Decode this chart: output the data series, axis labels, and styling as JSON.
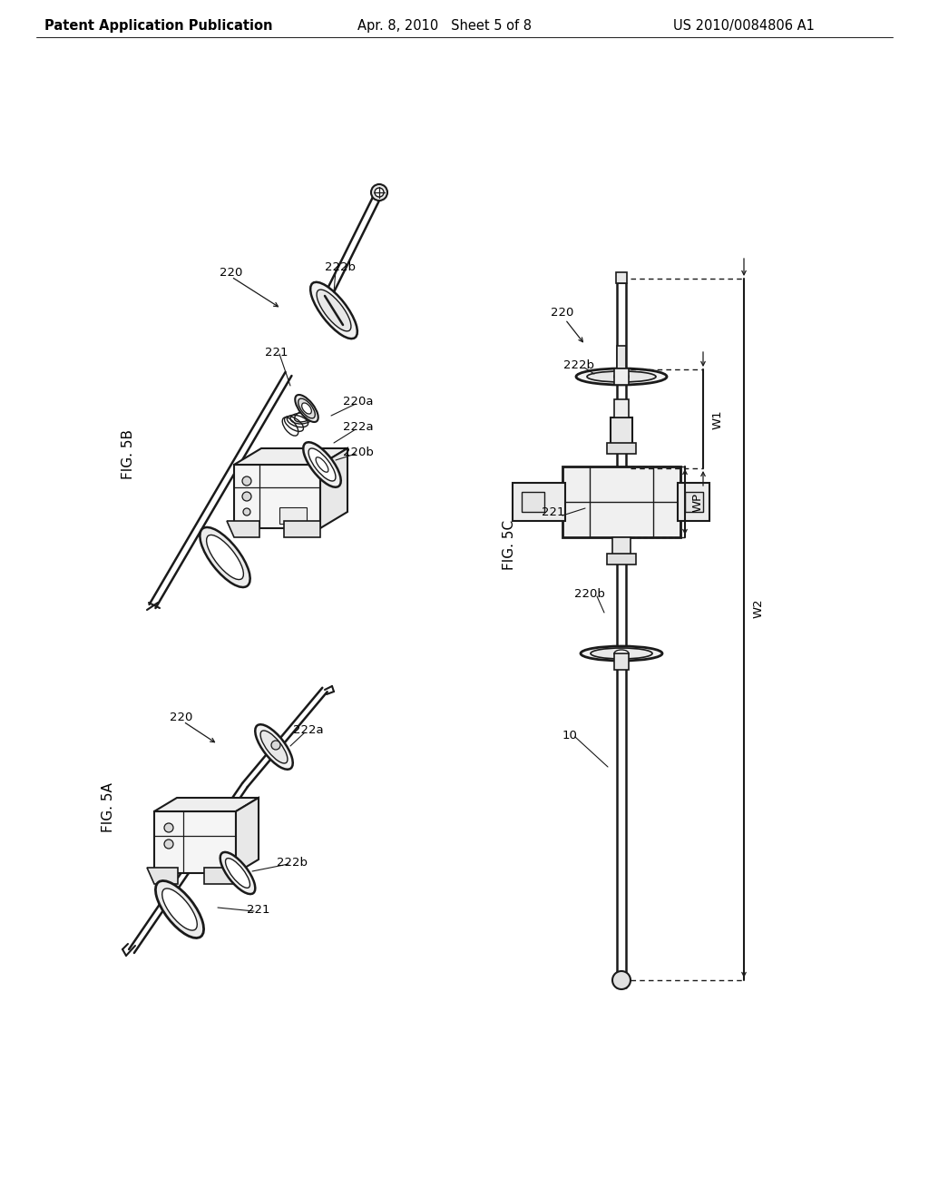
{
  "bg_color": "#ffffff",
  "header_left": "Patent Application Publication",
  "header_mid": "Apr. 8, 2010   Sheet 5 of 8",
  "header_right": "US 2010/0084806 A1",
  "header_fontsize": 10.5,
  "fig_label_5B": "FIG. 5B",
  "fig_label_5A": "FIG. 5A",
  "fig_label_5C": "FIG. 5C",
  "line_color": "#1a1a1a",
  "label_fontsize": 9.5,
  "fig_label_fontsize": 11
}
